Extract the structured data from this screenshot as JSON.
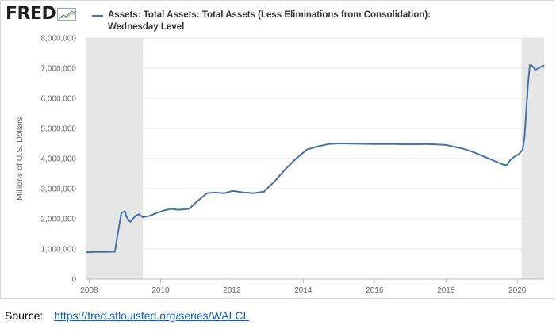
{
  "logo": {
    "text": "FRED"
  },
  "legend": {
    "line1": "Assets: Total Assets: Total Assets (Less Eliminations from Consolidation):",
    "line2": "Wednesday Level"
  },
  "source": {
    "label": "Source:",
    "link_text": "https://fred.stlouisfed.org/series/WALCL"
  },
  "colors": {
    "series": "#4572a7",
    "recession": "#e6e6e6",
    "grid": "#e6e6e6",
    "link": "#0563c1"
  },
  "chart_data": {
    "type": "line",
    "title": "",
    "xlabel": "",
    "ylabel": "Millions of U.S. Dollars",
    "xlim": [
      2007.9,
      2020.75
    ],
    "ylim": [
      0,
      8000000
    ],
    "grid": "horizontal",
    "legend_position": "top",
    "x_ticks": [
      2008,
      2010,
      2012,
      2014,
      2016,
      2018,
      2020
    ],
    "y_ticks": [
      {
        "value": 0,
        "label": "0"
      },
      {
        "value": 1000000,
        "label": "1,000,000"
      },
      {
        "value": 2000000,
        "label": "2,000,000"
      },
      {
        "value": 3000000,
        "label": "3,000,000"
      },
      {
        "value": 4000000,
        "label": "4,000,000"
      },
      {
        "value": 5000000,
        "label": "5,000,000"
      },
      {
        "value": 6000000,
        "label": "6,000,000"
      },
      {
        "value": 7000000,
        "label": "7,000,000"
      },
      {
        "value": 8000000,
        "label": "8,000,000"
      }
    ],
    "recessions": [
      [
        2007.9,
        2009.5
      ],
      [
        2020.12,
        2020.75
      ]
    ],
    "series": [
      {
        "name": "Assets: Total Assets: Total Assets (Less Eliminations from Consolidation): Wednesday Level",
        "x": [
          2007.9,
          2008.2,
          2008.5,
          2008.72,
          2008.8,
          2008.9,
          2009.0,
          2009.05,
          2009.15,
          2009.3,
          2009.4,
          2009.5,
          2009.7,
          2009.9,
          2010.1,
          2010.3,
          2010.5,
          2010.8,
          2011.0,
          2011.3,
          2011.5,
          2011.8,
          2012.0,
          2012.05,
          2012.3,
          2012.6,
          2012.9,
          2013.2,
          2013.5,
          2013.8,
          2014.1,
          2014.4,
          2014.7,
          2015.0,
          2015.5,
          2016.0,
          2016.5,
          2017.0,
          2017.5,
          2018.0,
          2018.5,
          2018.8,
          2019.1,
          2019.4,
          2019.6,
          2019.7,
          2019.8,
          2019.9,
          2020.05,
          2020.15,
          2020.2,
          2020.3,
          2020.35,
          2020.4,
          2020.5,
          2020.6,
          2020.75
        ],
        "y": [
          890000,
          900000,
          900000,
          910000,
          1500000,
          2200000,
          2250000,
          2050000,
          1900000,
          2100000,
          2150000,
          2050000,
          2100000,
          2200000,
          2280000,
          2330000,
          2300000,
          2330000,
          2550000,
          2850000,
          2870000,
          2850000,
          2920000,
          2920000,
          2880000,
          2850000,
          2900000,
          3250000,
          3650000,
          4000000,
          4300000,
          4400000,
          4480000,
          4500000,
          4490000,
          4480000,
          4480000,
          4470000,
          4480000,
          4450000,
          4320000,
          4200000,
          4050000,
          3900000,
          3800000,
          3780000,
          3950000,
          4050000,
          4150000,
          4300000,
          4700000,
          6500000,
          7100000,
          7100000,
          6950000,
          7000000,
          7100000
        ]
      }
    ]
  }
}
